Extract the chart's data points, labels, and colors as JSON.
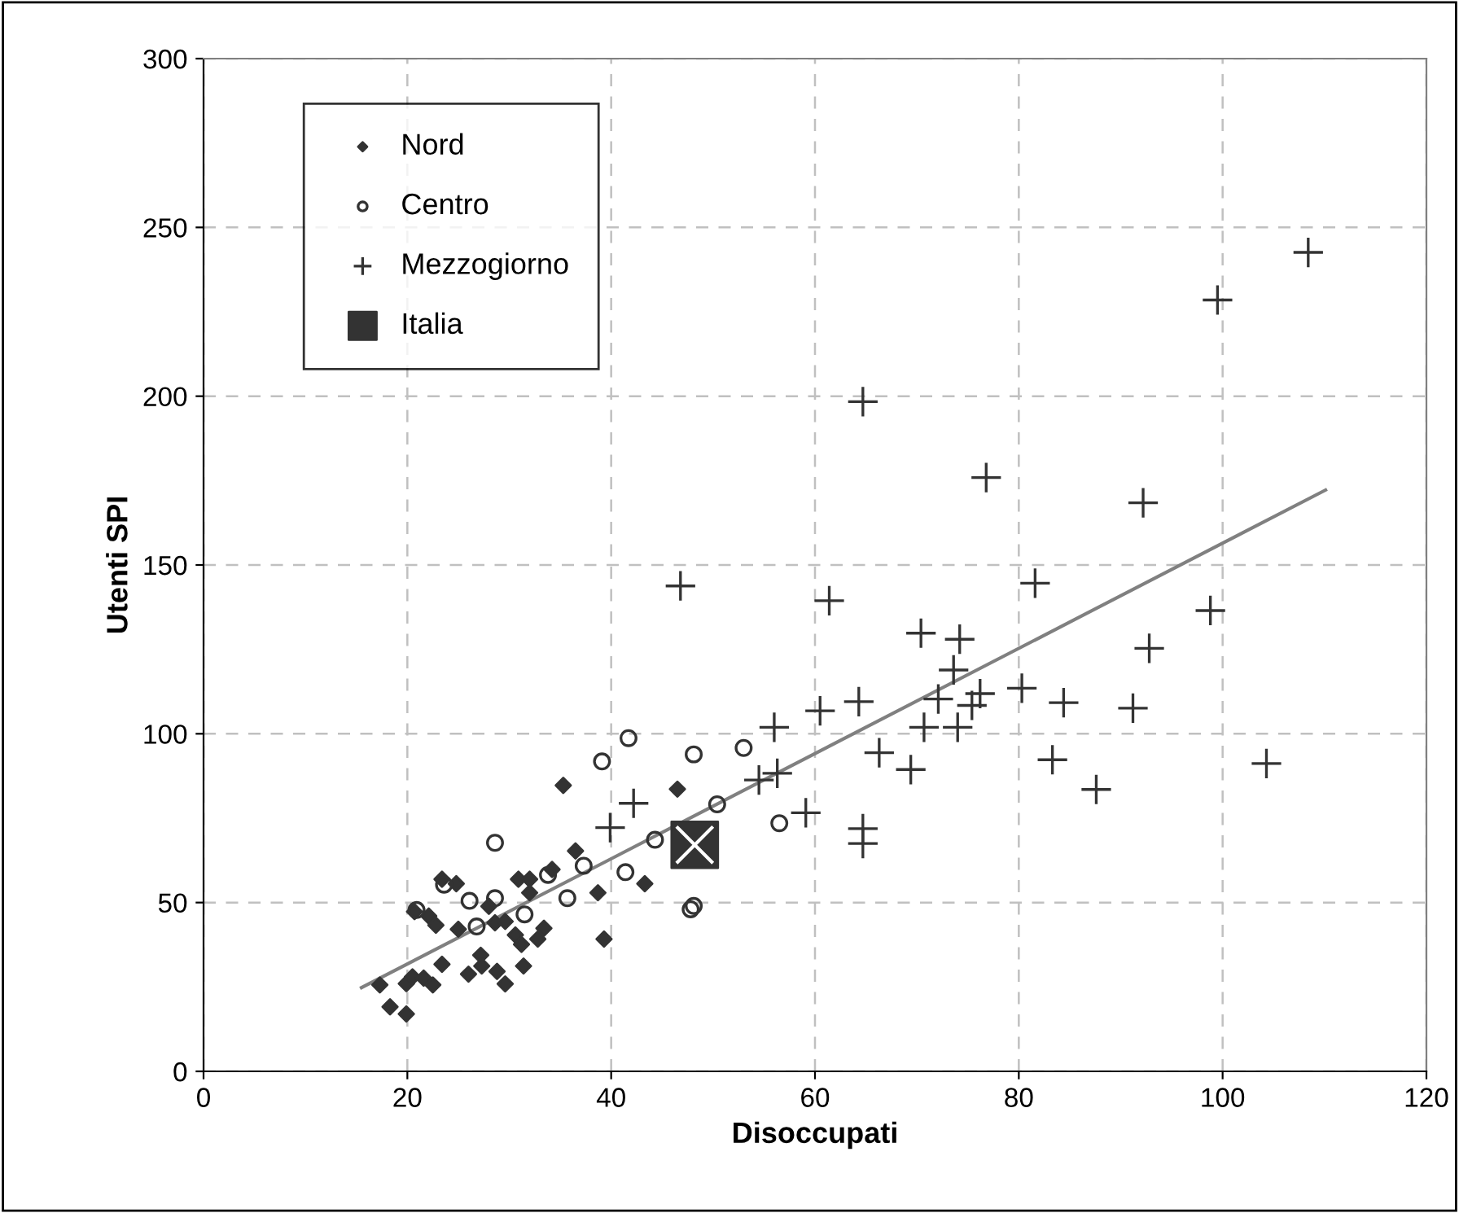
{
  "chart_data": {
    "type": "scatter",
    "xlabel": "Disoccupati",
    "ylabel": "Utenti SPI",
    "xlim": [
      0,
      120
    ],
    "ylim": [
      0,
      300
    ],
    "xticks": [
      0,
      20,
      40,
      60,
      80,
      100,
      120
    ],
    "yticks": [
      0,
      50,
      100,
      150,
      200,
      250,
      300
    ],
    "grid": true,
    "legend": "top left",
    "series": [
      {
        "name": "Nord",
        "color": "#333333",
        "marker": "diamond",
        "x": [
          17.3,
          18.3,
          19.9,
          19.9,
          20.5,
          21.6,
          22.5,
          23.4,
          20.7,
          22.1,
          22.8,
          23.4,
          24.8,
          25.0,
          26.0,
          27.2,
          27.3,
          28.8,
          29.6,
          28.0,
          28.6,
          29.6,
          30.6,
          31.2,
          31.4,
          30.9,
          32.0,
          32.0,
          32.8,
          33.4,
          34.2,
          35.3,
          36.5,
          38.7,
          39.3,
          43.3,
          46.5
        ],
        "values": [
          25.6,
          19.1,
          17.0,
          26.0,
          28.0,
          27.6,
          25.6,
          31.7,
          47.3,
          46.0,
          43.3,
          56.9,
          55.6,
          42.1,
          28.8,
          34.4,
          31.2,
          29.6,
          25.9,
          48.9,
          44.0,
          44.4,
          40.4,
          37.6,
          31.2,
          56.9,
          56.9,
          52.9,
          39.2,
          42.4,
          59.8,
          84.7,
          65.3,
          52.9,
          39.2,
          55.6,
          83.6
        ]
      },
      {
        "name": "Centro",
        "color": "#333333",
        "marker": "circle",
        "x": [
          20.9,
          23.6,
          26.1,
          26.8,
          28.6,
          28.6,
          31.5,
          33.8,
          35.7,
          37.3,
          39.1,
          41.7,
          41.4,
          44.3,
          48.1,
          47.8,
          48.1,
          50.4,
          53.0,
          56.5
        ],
        "values": [
          47.8,
          55.3,
          50.5,
          42.9,
          51.3,
          67.7,
          46.5,
          58.2,
          51.3,
          60.9,
          91.8,
          98.7,
          59.0,
          68.6,
          93.9,
          48.0,
          49.0,
          79.1,
          95.8,
          73.5
        ]
      },
      {
        "name": "Mezzogiorno",
        "color": "#333333",
        "marker": "cross",
        "x": [
          39.9,
          42.2,
          46.8,
          54.5,
          56.3,
          56.0,
          60.5,
          64.3,
          61.4,
          59.1,
          64.7,
          64.7,
          66.3,
          69.4,
          70.7,
          74.0,
          70.4,
          74.2,
          73.6,
          72.1,
          75.4,
          76.2,
          64.7,
          76.8,
          81.6,
          80.3,
          84.4,
          83.3,
          99.5,
          108.4,
          92.2,
          98.8,
          92.8,
          91.2,
          104.3,
          87.6
        ],
        "values": [
          72.2,
          79.4,
          143.8,
          86.3,
          88.3,
          101.9,
          106.8,
          109.5,
          139.4,
          76.6,
          71.9,
          67.5,
          94.4,
          89.4,
          101.9,
          101.9,
          129.8,
          128.0,
          118.9,
          110.3,
          108.4,
          111.9,
          198.4,
          175.9,
          144.6,
          113.5,
          109.2,
          92.3,
          228.5,
          242.6,
          168.4,
          136.5,
          125.3,
          107.6,
          91.2,
          83.5
        ]
      },
      {
        "name": "Italia",
        "color": "#333333",
        "marker": "square",
        "x": [
          48.2
        ],
        "values": [
          67.1
        ]
      },
      {
        "type": "line",
        "color": "#808080",
        "marker": "none",
        "x": [
          15.5,
          110.1
        ],
        "values": [
          24.8,
          172.2
        ]
      }
    ]
  }
}
